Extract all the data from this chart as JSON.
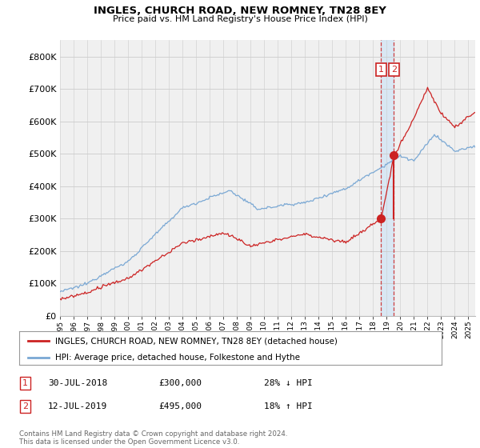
{
  "title": "INGLES, CHURCH ROAD, NEW ROMNEY, TN28 8EY",
  "subtitle": "Price paid vs. HM Land Registry's House Price Index (HPI)",
  "legend_line1": "INGLES, CHURCH ROAD, NEW ROMNEY, TN28 8EY (detached house)",
  "legend_line2": "HPI: Average price, detached house, Folkestone and Hythe",
  "footer": "Contains HM Land Registry data © Crown copyright and database right 2024.\nThis data is licensed under the Open Government Licence v3.0.",
  "sale1_label": "1",
  "sale1_date": "30-JUL-2018",
  "sale1_price": "£300,000",
  "sale1_hpi": "28% ↓ HPI",
  "sale1_year": 2018.58,
  "sale1_value": 300000,
  "sale2_label": "2",
  "sale2_date": "12-JUL-2019",
  "sale2_price": "£495,000",
  "sale2_hpi": "18% ↑ HPI",
  "sale2_year": 2019.53,
  "sale2_value": 495000,
  "hpi_color": "#7aa8d4",
  "price_color": "#cc2222",
  "marker_color": "#cc2222",
  "plot_bg": "#f0f0f0",
  "background_color": "#ffffff",
  "ylim": [
    0,
    850000
  ],
  "yticks": [
    0,
    100000,
    200000,
    300000,
    400000,
    500000,
    600000,
    700000,
    800000
  ],
  "xlim_start": 1995.0,
  "xlim_end": 2025.5
}
